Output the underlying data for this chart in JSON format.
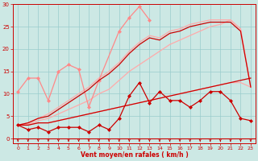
{
  "xlabel": "Vent moyen/en rafales ( km/h )",
  "xlim": [
    -0.5,
    23.5
  ],
  "ylim": [
    -1,
    30
  ],
  "yticks": [
    0,
    5,
    10,
    15,
    20,
    25,
    30
  ],
  "xticks": [
    0,
    1,
    2,
    3,
    4,
    5,
    6,
    7,
    8,
    9,
    10,
    11,
    12,
    13,
    14,
    15,
    16,
    17,
    18,
    19,
    20,
    21,
    22,
    23
  ],
  "bg_color": "#cce8e4",
  "grid_color": "#99cccc",
  "series": [
    {
      "x": [
        0,
        1,
        2,
        3,
        4,
        5,
        6,
        7,
        8,
        10,
        11,
        12,
        13
      ],
      "y": [
        10.5,
        13.5,
        13.5,
        8.5,
        15.0,
        16.5,
        15.5,
        7.0,
        13.0,
        24.0,
        27.0,
        29.5,
        26.5
      ],
      "color": "#ff8888",
      "lw": 0.9,
      "marker": "D",
      "ms": 2.0,
      "zorder": 3
    },
    {
      "x": [
        0,
        1,
        2,
        3,
        4,
        5,
        6,
        7,
        8,
        9,
        10,
        11,
        12,
        13,
        14,
        15,
        16,
        17,
        18,
        19,
        20,
        21,
        22,
        23
      ],
      "y": [
        3.0,
        2.0,
        2.5,
        1.5,
        2.5,
        2.5,
        2.5,
        1.5,
        3.0,
        2.0,
        4.5,
        9.5,
        12.5,
        8.0,
        10.5,
        8.5,
        8.5,
        7.0,
        8.5,
        10.5,
        10.5,
        8.5,
        4.5,
        4.0
      ],
      "color": "#cc0000",
      "lw": 0.9,
      "marker": "D",
      "ms": 2.0,
      "zorder": 4
    },
    {
      "x": [
        0,
        1,
        2,
        3,
        4,
        5,
        6,
        7,
        8,
        9,
        10,
        11,
        12,
        13,
        14,
        15,
        16,
        17,
        18,
        19,
        20,
        21,
        22,
        23
      ],
      "y": [
        3.0,
        3.0,
        3.5,
        3.5,
        4.0,
        4.5,
        5.0,
        5.5,
        6.0,
        6.5,
        7.0,
        7.5,
        8.0,
        8.5,
        9.0,
        9.5,
        10.0,
        10.5,
        11.0,
        11.5,
        12.0,
        12.5,
        12.5,
        11.5
      ],
      "color": "#ffaaaa",
      "lw": 0.9,
      "marker": null,
      "ms": 0,
      "zorder": 2
    },
    {
      "x": [
        0,
        1,
        2,
        3,
        4,
        5,
        6,
        7,
        8,
        9,
        10,
        11,
        12,
        13,
        14,
        15,
        16,
        17,
        18,
        19,
        20,
        21,
        22,
        23
      ],
      "y": [
        3.0,
        3.5,
        4.5,
        5.5,
        7.0,
        8.5,
        10.0,
        11.5,
        13.5,
        15.0,
        17.0,
        19.5,
        21.5,
        23.0,
        22.5,
        24.0,
        24.5,
        25.5,
        26.0,
        26.5,
        26.5,
        26.5,
        24.5,
        11.5
      ],
      "color": "#ffaaaa",
      "lw": 0.9,
      "marker": null,
      "ms": 0,
      "zorder": 2
    },
    {
      "x": [
        0,
        1,
        2,
        3,
        4,
        5,
        6,
        7,
        8,
        9,
        10,
        11,
        12,
        13,
        14,
        15,
        16,
        17,
        18,
        19,
        20,
        21,
        22,
        23
      ],
      "y": [
        3.0,
        3.2,
        4.0,
        4.5,
        5.5,
        6.5,
        7.5,
        8.5,
        10.0,
        11.0,
        13.0,
        15.0,
        16.5,
        18.0,
        19.5,
        21.0,
        22.0,
        23.0,
        24.0,
        25.0,
        25.5,
        26.5,
        24.5,
        11.5
      ],
      "color": "#ffaaaa",
      "lw": 0.9,
      "marker": null,
      "ms": 0,
      "zorder": 2
    },
    {
      "x": [
        0,
        1,
        2,
        3,
        4,
        5,
        6,
        7,
        8,
        9,
        10,
        11,
        12,
        13,
        14,
        15,
        16,
        17,
        18,
        19,
        20,
        21,
        22,
        23
      ],
      "y": [
        3.0,
        3.0,
        3.5,
        3.5,
        4.0,
        4.5,
        5.0,
        5.5,
        6.0,
        6.5,
        7.0,
        7.5,
        8.0,
        8.5,
        9.0,
        9.5,
        10.0,
        10.5,
        11.0,
        11.5,
        12.0,
        12.5,
        13.0,
        13.5
      ],
      "color": "#cc0000",
      "lw": 0.9,
      "marker": null,
      "ms": 0,
      "zorder": 3
    },
    {
      "x": [
        0,
        1,
        2,
        3,
        4,
        5,
        6,
        7,
        8,
        9,
        10,
        11,
        12,
        13,
        14,
        15,
        16,
        17,
        18,
        19,
        20,
        21,
        22,
        23
      ],
      "y": [
        3.0,
        3.5,
        4.5,
        5.0,
        6.5,
        8.0,
        9.5,
        11.0,
        13.0,
        14.5,
        16.5,
        19.0,
        21.0,
        22.5,
        22.0,
        23.5,
        24.0,
        25.0,
        25.5,
        26.0,
        26.0,
        26.0,
        24.0,
        11.5
      ],
      "color": "#cc0000",
      "lw": 0.9,
      "marker": null,
      "ms": 0,
      "zorder": 3
    }
  ],
  "arrow_color": "#cc0000",
  "hline_color": "#cc0000"
}
